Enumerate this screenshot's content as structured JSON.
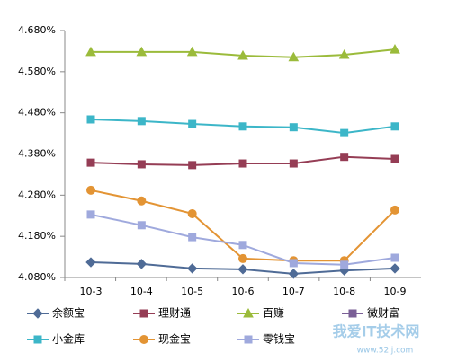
{
  "chart_data": {
    "type": "line",
    "categories": [
      "10-3",
      "10-4",
      "10-5",
      "10-6",
      "10-7",
      "10-8",
      "10-9"
    ],
    "series": [
      {
        "name": "余额宝",
        "color": "#4f6b96",
        "marker": "diamond",
        "values": [
          4.117,
          4.113,
          4.102,
          4.1,
          4.089,
          4.097,
          4.102
        ]
      },
      {
        "name": "理财通",
        "color": "#953d55",
        "marker": "square",
        "values": [
          4.359,
          4.355,
          4.353,
          4.357,
          4.357,
          4.373,
          4.368
        ]
      },
      {
        "name": "百赚",
        "color": "#9bbb3b",
        "marker": "triangle",
        "values": [
          4.628,
          4.628,
          4.628,
          4.619,
          4.615,
          4.621,
          4.634
        ]
      },
      {
        "name": "微财富",
        "color": "#7a5f96",
        "marker": "square",
        "values": [
          null,
          null,
          null,
          null,
          null,
          null,
          null
        ]
      },
      {
        "name": "小金库",
        "color": "#3cb6c8",
        "marker": "square",
        "values": [
          4.464,
          4.46,
          4.453,
          4.447,
          4.445,
          4.431,
          4.447
        ]
      },
      {
        "name": "现金宝",
        "color": "#e39434",
        "marker": "circle",
        "values": [
          4.292,
          4.266,
          4.235,
          4.126,
          4.121,
          4.121,
          4.244
        ]
      },
      {
        "name": "零钱宝",
        "color": "#9fa9dd",
        "marker": "square",
        "values": [
          4.233,
          4.207,
          4.178,
          4.159,
          4.115,
          4.111,
          4.128
        ]
      }
    ],
    "ylim": [
      4.08,
      4.68
    ],
    "yticks": [
      {
        "value": 4.08,
        "label": "4.080%"
      },
      {
        "value": 4.18,
        "label": "4.180%"
      },
      {
        "value": 4.28,
        "label": "4.280%"
      },
      {
        "value": 4.38,
        "label": "4.380%"
      },
      {
        "value": 4.48,
        "label": "4.480%"
      },
      {
        "value": 4.58,
        "label": "4.580%"
      },
      {
        "value": 4.68,
        "label": "4.680%"
      }
    ],
    "grid": false,
    "watermark": "我爱IT技术网",
    "watermark_url": "www.52ij.com"
  }
}
